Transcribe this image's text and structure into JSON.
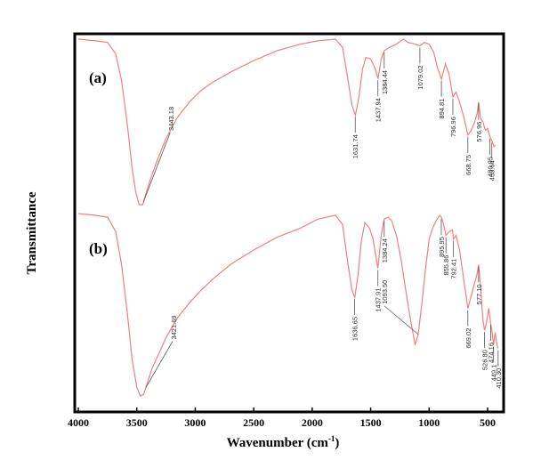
{
  "chart_data": {
    "type": "line",
    "title": "",
    "xlabel": "Wavenumber (cm",
    "xlabel_sup": "-1",
    "xlabel_tail": ")",
    "ylabel": "Transmittance",
    "xlim": [
      4000,
      400
    ],
    "x_reversed": true,
    "xticks": [
      4000,
      3500,
      3000,
      2500,
      2000,
      1500,
      1000,
      500
    ],
    "grid": false,
    "colors": {
      "trace": "#f08080",
      "annotation": "#555555",
      "frame": "#000000"
    },
    "panels": [
      {
        "label": "(a)",
        "points": [
          [
            4000,
            0.0
          ],
          [
            3850,
            0.01
          ],
          [
            3750,
            0.02
          ],
          [
            3680,
            0.09
          ],
          [
            3630,
            0.25
          ],
          [
            3580,
            0.52
          ],
          [
            3540,
            0.78
          ],
          [
            3510,
            0.92
          ],
          [
            3480,
            1.0
          ],
          [
            3450,
            1.0
          ],
          [
            3420,
            0.93
          ],
          [
            3380,
            0.84
          ],
          [
            3330,
            0.74
          ],
          [
            3250,
            0.6
          ],
          [
            3150,
            0.47
          ],
          [
            3050,
            0.38
          ],
          [
            2950,
            0.31
          ],
          [
            2850,
            0.26
          ],
          [
            2700,
            0.2
          ],
          [
            2500,
            0.13
          ],
          [
            2300,
            0.07
          ],
          [
            2100,
            0.03
          ],
          [
            1950,
            0.01
          ],
          [
            1800,
            0.0
          ],
          [
            1740,
            0.05
          ],
          [
            1700,
            0.22
          ],
          [
            1660,
            0.4
          ],
          [
            1631,
            0.46
          ],
          [
            1600,
            0.35
          ],
          [
            1570,
            0.18
          ],
          [
            1540,
            0.11
          ],
          [
            1500,
            0.12
          ],
          [
            1460,
            0.18
          ],
          [
            1437,
            0.24
          ],
          [
            1410,
            0.12
          ],
          [
            1384,
            0.07
          ],
          [
            1340,
            0.05
          ],
          [
            1280,
            0.03
          ],
          [
            1220,
            0.0
          ],
          [
            1180,
            0.02
          ],
          [
            1120,
            0.03
          ],
          [
            1079,
            0.04
          ],
          [
            1040,
            0.02
          ],
          [
            1000,
            0.03
          ],
          [
            960,
            0.08
          ],
          [
            930,
            0.17
          ],
          [
            895,
            0.24
          ],
          [
            860,
            0.15
          ],
          [
            830,
            0.21
          ],
          [
            797,
            0.35
          ],
          [
            770,
            0.32
          ],
          [
            740,
            0.38
          ],
          [
            700,
            0.48
          ],
          [
            669,
            0.58
          ],
          [
            640,
            0.55
          ],
          [
            610,
            0.5
          ],
          [
            590,
            0.45
          ],
          [
            577,
            0.38
          ],
          [
            560,
            0.48
          ],
          [
            540,
            0.5
          ],
          [
            520,
            0.55
          ],
          [
            500,
            0.54
          ],
          [
            481,
            0.59
          ],
          [
            460,
            0.62
          ],
          [
            445,
            0.65
          ],
          [
            430,
            0.64
          ]
        ],
        "peaks": [
          {
            "label": "3443.18",
            "x": 3443
          },
          {
            "label": "1631.74",
            "x": 1632
          },
          {
            "label": "1437.94",
            "x": 1438
          },
          {
            "label": "1384.44",
            "x": 1384
          },
          {
            "label": "1079.02",
            "x": 1079
          },
          {
            "label": "894.81",
            "x": 895
          },
          {
            "label": "796.96",
            "x": 797
          },
          {
            "label": "668.75",
            "x": 669
          },
          {
            "label": "576.96",
            "x": 577
          },
          {
            "label": "480.05",
            "x": 480
          },
          {
            "label": "463.64",
            "x": 464
          }
        ]
      },
      {
        "label": "(b)",
        "points": [
          [
            4000,
            0.0
          ],
          [
            3850,
            0.01
          ],
          [
            3750,
            0.02
          ],
          [
            3680,
            0.1
          ],
          [
            3630,
            0.28
          ],
          [
            3580,
            0.55
          ],
          [
            3540,
            0.8
          ],
          [
            3500,
            0.95
          ],
          [
            3470,
            1.0
          ],
          [
            3440,
            0.99
          ],
          [
            3410,
            0.93
          ],
          [
            3370,
            0.85
          ],
          [
            3320,
            0.78
          ],
          [
            3250,
            0.68
          ],
          [
            3150,
            0.57
          ],
          [
            3050,
            0.49
          ],
          [
            2950,
            0.42
          ],
          [
            2850,
            0.36
          ],
          [
            2700,
            0.28
          ],
          [
            2500,
            0.2
          ],
          [
            2300,
            0.13
          ],
          [
            2100,
            0.08
          ],
          [
            1950,
            0.03
          ],
          [
            1800,
            0.01
          ],
          [
            1740,
            0.06
          ],
          [
            1700,
            0.25
          ],
          [
            1660,
            0.42
          ],
          [
            1636,
            0.46
          ],
          [
            1610,
            0.35
          ],
          [
            1580,
            0.15
          ],
          [
            1550,
            0.05
          ],
          [
            1510,
            0.08
          ],
          [
            1480,
            0.14
          ],
          [
            1438,
            0.3
          ],
          [
            1410,
            0.12
          ],
          [
            1384,
            0.03
          ],
          [
            1350,
            0.02
          ],
          [
            1320,
            0.04
          ],
          [
            1280,
            0.12
          ],
          [
            1240,
            0.25
          ],
          [
            1200,
            0.42
          ],
          [
            1160,
            0.58
          ],
          [
            1120,
            0.72
          ],
          [
            1093,
            0.66
          ],
          [
            1060,
            0.48
          ],
          [
            1030,
            0.3
          ],
          [
            1000,
            0.14
          ],
          [
            970,
            0.08
          ],
          [
            940,
            0.04
          ],
          [
            910,
            0.01
          ],
          [
            896,
            0.02
          ],
          [
            880,
            0.05
          ],
          [
            856,
            0.12
          ],
          [
            830,
            0.1
          ],
          [
            800,
            0.09
          ],
          [
            792,
            0.14
          ],
          [
            770,
            0.12
          ],
          [
            740,
            0.2
          ],
          [
            700,
            0.38
          ],
          [
            669,
            0.52
          ],
          [
            640,
            0.45
          ],
          [
            610,
            0.38
          ],
          [
            590,
            0.33
          ],
          [
            577,
            0.28
          ],
          [
            560,
            0.4
          ],
          [
            540,
            0.58
          ],
          [
            527,
            0.64
          ],
          [
            510,
            0.6
          ],
          [
            490,
            0.52
          ],
          [
            474,
            0.6
          ],
          [
            460,
            0.66
          ],
          [
            449,
            0.72
          ],
          [
            435,
            0.65
          ],
          [
            420,
            0.72
          ],
          [
            410,
            0.74
          ]
        ],
        "peaks": [
          {
            "label": "3421.69",
            "x": 3422
          },
          {
            "label": "1636.65",
            "x": 1637
          },
          {
            "label": "1437.91",
            "x": 1438
          },
          {
            "label": "1384.24",
            "x": 1384
          },
          {
            "label": "1093.50",
            "x": 1094
          },
          {
            "label": "895.95",
            "x": 896
          },
          {
            "label": "855.86",
            "x": 856
          },
          {
            "label": "792.41",
            "x": 792
          },
          {
            "label": "669.02",
            "x": 669
          },
          {
            "label": "577.10",
            "x": 577
          },
          {
            "label": "526.80",
            "x": 527
          },
          {
            "label": "474.16",
            "x": 474
          },
          {
            "label": "449.1",
            "x": 449
          },
          {
            "label": "410.30",
            "x": 410
          }
        ]
      }
    ]
  }
}
